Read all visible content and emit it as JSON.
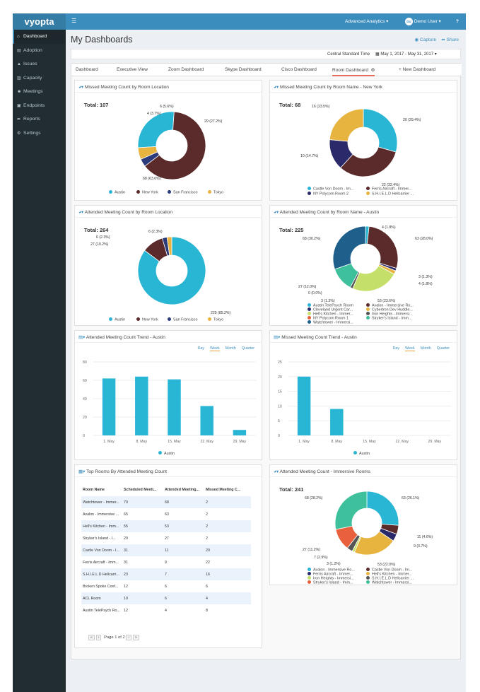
{
  "app": {
    "logo": "vyopta",
    "menu_icon": "hamburger-icon"
  },
  "topnav": {
    "analytics": "Advanced Analytics",
    "user_initials": "DU",
    "user": "Demo User",
    "help": "?"
  },
  "sidebar": {
    "items": [
      {
        "label": "Dashboard",
        "icon": "home-icon",
        "active": true
      },
      {
        "label": "Adoption",
        "icon": "chart-icon"
      },
      {
        "label": "Issues",
        "icon": "warning-icon"
      },
      {
        "label": "Capacity",
        "icon": "bar-chart-icon"
      },
      {
        "label": "Meetings",
        "icon": "users-icon"
      },
      {
        "label": "Endpoints",
        "icon": "desktop-icon"
      },
      {
        "label": "Reports",
        "icon": "share-icon"
      },
      {
        "label": "Settings",
        "icon": "gear-icon"
      }
    ]
  },
  "header": {
    "title": "My Dashboards",
    "capture": "Capture",
    "share": "Share"
  },
  "datebar": {
    "timezone": "Central Standard Time",
    "range": "May 1, 2017 - May 31, 2017"
  },
  "tabs": [
    "Dashboard",
    "Executive View",
    "Zoom Dashboard",
    "Skype Dashboard",
    "Cisco Dashboard",
    "Room Dashboard",
    "+ New Dashboard"
  ],
  "active_tab": 5,
  "colors": {
    "austin": "#29b6d4",
    "newyork": "#5b2a2a",
    "sf": "#2a3a7a",
    "tokyo": "#e8b440",
    "blue": "#3c8dbc"
  },
  "cards": {
    "c1": {
      "title": "Missed Meeting Count by Room Location",
      "total": "Total: 107",
      "labels": [
        "29 (27.2%)",
        "68 (63.6%)",
        "4 (3.7%)",
        "6 (5.6%)"
      ],
      "legend": [
        "Austin",
        "New York",
        "San Francisco",
        "Tokyo"
      ]
    },
    "c2": {
      "title": "Missed Meeting Count by Room Name - New York",
      "total": "Total: 68",
      "labels": [
        "20 (29.4%)",
        "22 (32.4%)",
        "10 (14.7%)",
        "16 (23.5%)"
      ],
      "legend": [
        "Castle Von Doom - Im...",
        "Ferris Aircraft - Immer...",
        "NY Polycom Room 2",
        "S.H.I.E.L.D Hellcarrier ..."
      ]
    },
    "c3": {
      "title": "Attended Meeting Count by Room Location",
      "total": "Total: 264",
      "labels": [
        "225 (85.2%)",
        "27 (10.2%)",
        "6 (2.3%)",
        "6 (2.3%)"
      ],
      "legend": [
        "Austin",
        "New York",
        "San Francisco",
        "Tokyo"
      ]
    },
    "c4": {
      "title": "Attended Meeting Count by Room Name - Austin",
      "total": "Total: 225",
      "labels": [
        "4 (1.8%)",
        "63 (28.0%)",
        "3 (1.3%)",
        "4 (1.8%)",
        "53 (23.6%)",
        "3 (1.3%)",
        "0 (0.0%)",
        "27 (12.0%)",
        "68 (30.2%)"
      ],
      "legend": [
        "Austin TelePsych Room",
        "Avalon - Immersive Ro...",
        "Cleveland Urgent Car...",
        "Cybertron Dev Huddle...",
        "Hell's Kitchen - Immer...",
        "Iron Heights - Immersi...",
        "NY Polycom Room 1",
        "Stryker's Island - Imm...",
        "Watchtower - Immersi..."
      ]
    },
    "c5": {
      "title": "Attended Meeting Count Trend - Austin",
      "legend": "Austin",
      "buttons": [
        "Day",
        "Week",
        "Month",
        "Quarter"
      ],
      "selected": "Week"
    },
    "c6": {
      "title": "Missed Meeting Count Trend - Austin",
      "legend": "Austin",
      "buttons": [
        "Day",
        "Week",
        "Month",
        "Quarter"
      ],
      "selected": "Week"
    },
    "c7": {
      "title": "Top Rooms By Attended Meeting Count",
      "headers": [
        "Room Name",
        "Scheduled Meeti...",
        "Attended Meeting...",
        "Missed Meeting C..."
      ],
      "rows": [
        [
          "Watchtower - Immer...",
          "70",
          "68",
          "2"
        ],
        [
          "Avalon - Immersive ...",
          "65",
          "63",
          "2"
        ],
        [
          "Hell's Kitchen - Imm...",
          "55",
          "53",
          "2"
        ],
        [
          "Stryker's Island - I...",
          "29",
          "27",
          "2"
        ],
        [
          "Castle Von Doom - I...",
          "31",
          "11",
          "20"
        ],
        [
          "Ferris Aircraft - Imm...",
          "31",
          "9",
          "22"
        ],
        [
          "S.H.I.E.L.D Hellcarri...",
          "23",
          "7",
          "16"
        ],
        [
          "Broken Spoke Conf...",
          "12",
          "6",
          "6"
        ],
        [
          "ACL Room",
          "10",
          "6",
          "4"
        ],
        [
          "Austin TelePsych Ro...",
          "12",
          "4",
          "8"
        ]
      ],
      "pager": "Page 1 of 2"
    },
    "c8": {
      "title": "Attended Meeting Count - Immersive Rooms",
      "total": "Total: 241",
      "labels": [
        "63 (26.1%)",
        "11 (4.6%)",
        "9 (3.7%)",
        "53 (22.0%)",
        "3 (1.2%)",
        "7 (2.9%)",
        "27 (11.2%)",
        "68 (28.2%)"
      ],
      "legend": [
        "Avalon - Immersive Ro...",
        "Castle Von Doom - Im...",
        "Ferris Aircraft - Immer...",
        "Hell's Kitchen - Immer...",
        "Iron Heights - Immersi...",
        "S.H.I.E.L.D Hellcarrier ...",
        "Stryker's Island - Imm...",
        "Watchtower - Immersi..."
      ]
    }
  },
  "chart_data": [
    {
      "type": "pie",
      "title": "Missed Meeting Count by Room Location",
      "categories": [
        "Austin",
        "New York",
        "San Francisco",
        "Tokyo"
      ],
      "values": [
        29,
        68,
        4,
        6
      ]
    },
    {
      "type": "pie",
      "title": "Missed Meeting Count by Room Name - New York",
      "categories": [
        "Castle Von Doom - Im...",
        "Ferris Aircraft - Immer...",
        "NY Polycom Room 2",
        "S.H.I.E.L.D Hellcarrier ..."
      ],
      "values": [
        20,
        22,
        10,
        16
      ]
    },
    {
      "type": "pie",
      "title": "Attended Meeting Count by Room Location",
      "categories": [
        "Austin",
        "New York",
        "San Francisco",
        "Tokyo"
      ],
      "values": [
        225,
        27,
        6,
        6
      ]
    },
    {
      "type": "pie",
      "title": "Attended Meeting Count by Room Name - Austin",
      "categories": [
        "Austin TelePsych Room",
        "Avalon - Immersive Ro...",
        "Cleveland Urgent Car...",
        "Cybertron Dev Huddle...",
        "Hell's Kitchen - Immer...",
        "Iron Heights - Immersi...",
        "NY Polycom Room 1",
        "Stryker's Island - Imm...",
        "Watchtower - Immersi..."
      ],
      "values": [
        4,
        63,
        3,
        4,
        53,
        3,
        0,
        27,
        68
      ]
    },
    {
      "type": "bar",
      "title": "Attended Meeting Count Trend - Austin",
      "categories": [
        "1. May",
        "8. May",
        "15. May",
        "22. May",
        "29. May"
      ],
      "series": [
        {
          "name": "Austin",
          "values": [
            62,
            64,
            61,
            32,
            6
          ]
        }
      ],
      "ylim": [
        0,
        80
      ],
      "yticks": [
        0,
        20,
        40,
        60,
        80
      ]
    },
    {
      "type": "bar",
      "title": "Missed Meeting Count Trend - Austin",
      "categories": [
        "1. May",
        "8. May",
        "15. May",
        "22. May",
        "29. May"
      ],
      "series": [
        {
          "name": "Austin",
          "values": [
            20,
            9,
            0,
            0,
            0
          ]
        }
      ],
      "ylim": [
        0,
        25
      ],
      "yticks": [
        0,
        5,
        10,
        15,
        20,
        25
      ]
    },
    {
      "type": "pie",
      "title": "Attended Meeting Count - Immersive Rooms",
      "categories": [
        "Avalon - Immersive Ro...",
        "Castle Von Doom - Im...",
        "Ferris Aircraft - Immer...",
        "Hell's Kitchen - Immer...",
        "Iron Heights - Immersi...",
        "S.H.I.E.L.D Hellcarrier ...",
        "Stryker's Island - Imm...",
        "Watchtower - Immersi..."
      ],
      "values": [
        63,
        11,
        9,
        53,
        3,
        7,
        27,
        68
      ]
    }
  ]
}
